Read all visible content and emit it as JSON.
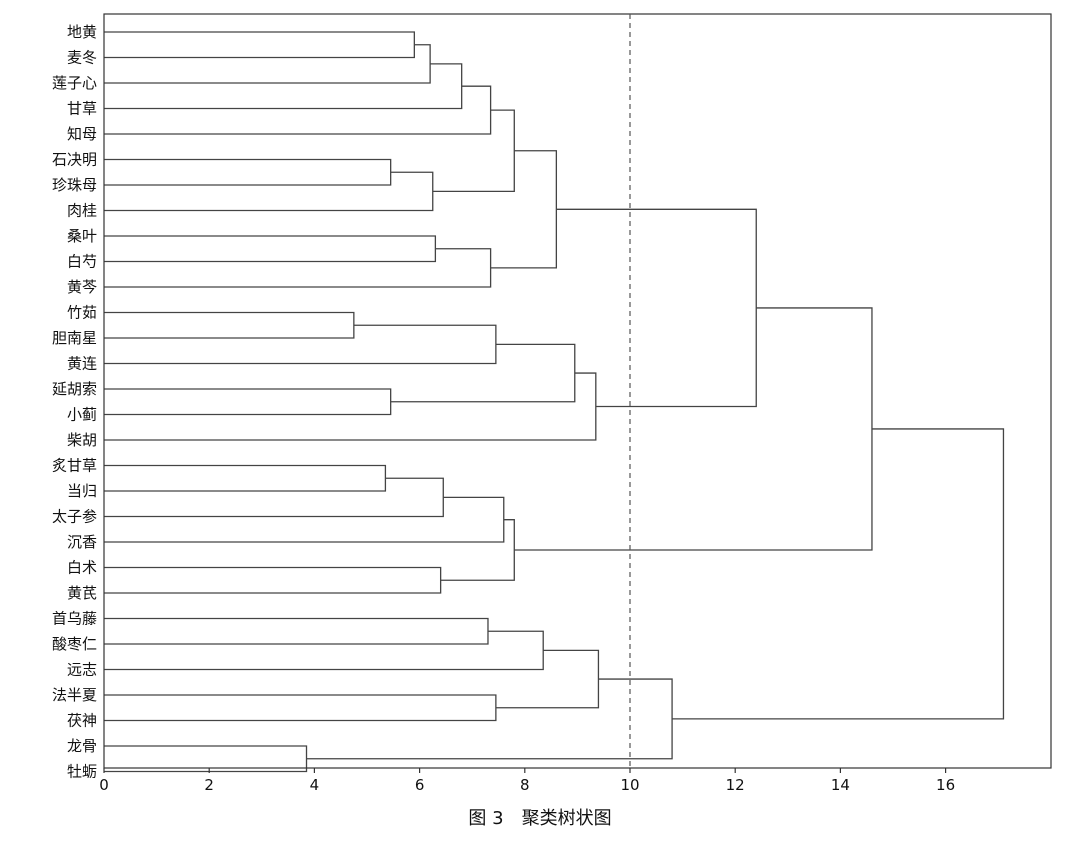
{
  "figure_caption": "图 3　聚类树状图",
  "chart_data": {
    "type": "dendrogram",
    "orientation": "horizontal",
    "leaves": [
      "地黄",
      "麦冬",
      "莲子心",
      "甘草",
      "知母",
      "石决明",
      "珍珠母",
      "肉桂",
      "桑叶",
      "白芍",
      "黄芩",
      "竹茹",
      "胆南星",
      "黄连",
      "延胡索",
      "小蓟",
      "柴胡",
      "炙甘草",
      "当归",
      "太子参",
      "沉香",
      "白术",
      "黄芪",
      "首乌藤",
      "酸枣仁",
      "远志",
      "法半夏",
      "茯神",
      "龙骨",
      "牡蛎"
    ],
    "merges": [
      {
        "a": "地黄",
        "b": "麦冬",
        "distance": 5.9
      },
      {
        "a": "地黄|麦冬",
        "b": "莲子心",
        "distance": 6.2
      },
      {
        "a": "地黄|麦冬|莲子心",
        "b": "甘草",
        "distance": 6.8
      },
      {
        "a": "地黄|麦冬|莲子心|甘草",
        "b": "知母",
        "distance": 7.35
      },
      {
        "a": "石决明",
        "b": "珍珠母",
        "distance": 5.45
      },
      {
        "a": "石决明|珍珠母",
        "b": "肉桂",
        "distance": 6.25
      },
      {
        "a": "地黄|麦冬|莲子心|甘草|知母",
        "b": "石决明|珍珠母|肉桂",
        "distance": 7.8
      },
      {
        "a": "桑叶",
        "b": "白芍",
        "distance": 6.3
      },
      {
        "a": "桑叶|白芍",
        "b": "黄芩",
        "distance": 7.35
      },
      {
        "a": "地黄|麦冬|莲子心|甘草|知母|石决明|珍珠母|肉桂",
        "b": "桑叶|白芍|黄芩",
        "distance": 8.6
      },
      {
        "a": "竹茹",
        "b": "胆南星",
        "distance": 4.75
      },
      {
        "a": "竹茹|胆南星",
        "b": "黄连",
        "distance": 7.45
      },
      {
        "a": "延胡索",
        "b": "小蓟",
        "distance": 5.45
      },
      {
        "a": "竹茹|胆南星|黄连",
        "b": "延胡索|小蓟",
        "distance": 8.95
      },
      {
        "a": "竹茹|胆南星|黄连|延胡索|小蓟",
        "b": "柴胡",
        "distance": 9.35
      },
      {
        "a": "地黄|麦冬|莲子心|甘草|知母|石决明|珍珠母|肉桂|桑叶|白芍|黄芩",
        "b": "竹茹|胆南星|黄连|延胡索|小蓟|柴胡",
        "distance": 12.4
      },
      {
        "a": "炙甘草",
        "b": "当归",
        "distance": 5.35
      },
      {
        "a": "炙甘草|当归",
        "b": "太子参",
        "distance": 6.45
      },
      {
        "a": "炙甘草|当归|太子参",
        "b": "沉香",
        "distance": 7.6
      },
      {
        "a": "白术",
        "b": "黄芪",
        "distance": 6.4
      },
      {
        "a": "炙甘草|当归|太子参|沉香",
        "b": "白术|黄芪",
        "distance": 7.8
      },
      {
        "a": "地黄|麦冬|莲子心|甘草|知母|石决明|珍珠母|肉桂|桑叶|白芍|黄芩|竹茹|胆南星|黄连|延胡索|小蓟|柴胡",
        "b": "炙甘草|当归|太子参|沉香|白术|黄芪",
        "distance": 14.6
      },
      {
        "a": "首乌藤",
        "b": "酸枣仁",
        "distance": 7.3
      },
      {
        "a": "首乌藤|酸枣仁",
        "b": "远志",
        "distance": 8.35
      },
      {
        "a": "法半夏",
        "b": "茯神",
        "distance": 7.45
      },
      {
        "a": "首乌藤|酸枣仁|远志",
        "b": "法半夏|茯神",
        "distance": 9.4
      },
      {
        "a": "龙骨",
        "b": "牡蛎",
        "distance": 3.85
      },
      {
        "a": "首乌藤|酸枣仁|远志|法半夏|茯神",
        "b": "龙骨|牡蛎",
        "distance": 10.8
      },
      {
        "a": "地黄|麦冬|莲子心|甘草|知母|石决明|珍珠母|肉桂|桑叶|白芍|黄芩|竹茹|胆南星|黄连|延胡索|小蓟|柴胡|炙甘草|当归|太子参|沉香|白术|黄芪",
        "b": "首乌藤|酸枣仁|远志|法半夏|茯神|龙骨|牡蛎",
        "distance": 17.1
      }
    ],
    "threshold": 10.0,
    "threshold_style": "dashed vertical line",
    "x_ticks": [
      0,
      2,
      4,
      6,
      8,
      10,
      12,
      14,
      16
    ],
    "xlim": [
      0,
      18
    ],
    "xlabel": "",
    "ylabel": "",
    "grid": false,
    "colors": {
      "lines": "#444444",
      "threshold": "#555555",
      "axis": "#333333"
    }
  }
}
